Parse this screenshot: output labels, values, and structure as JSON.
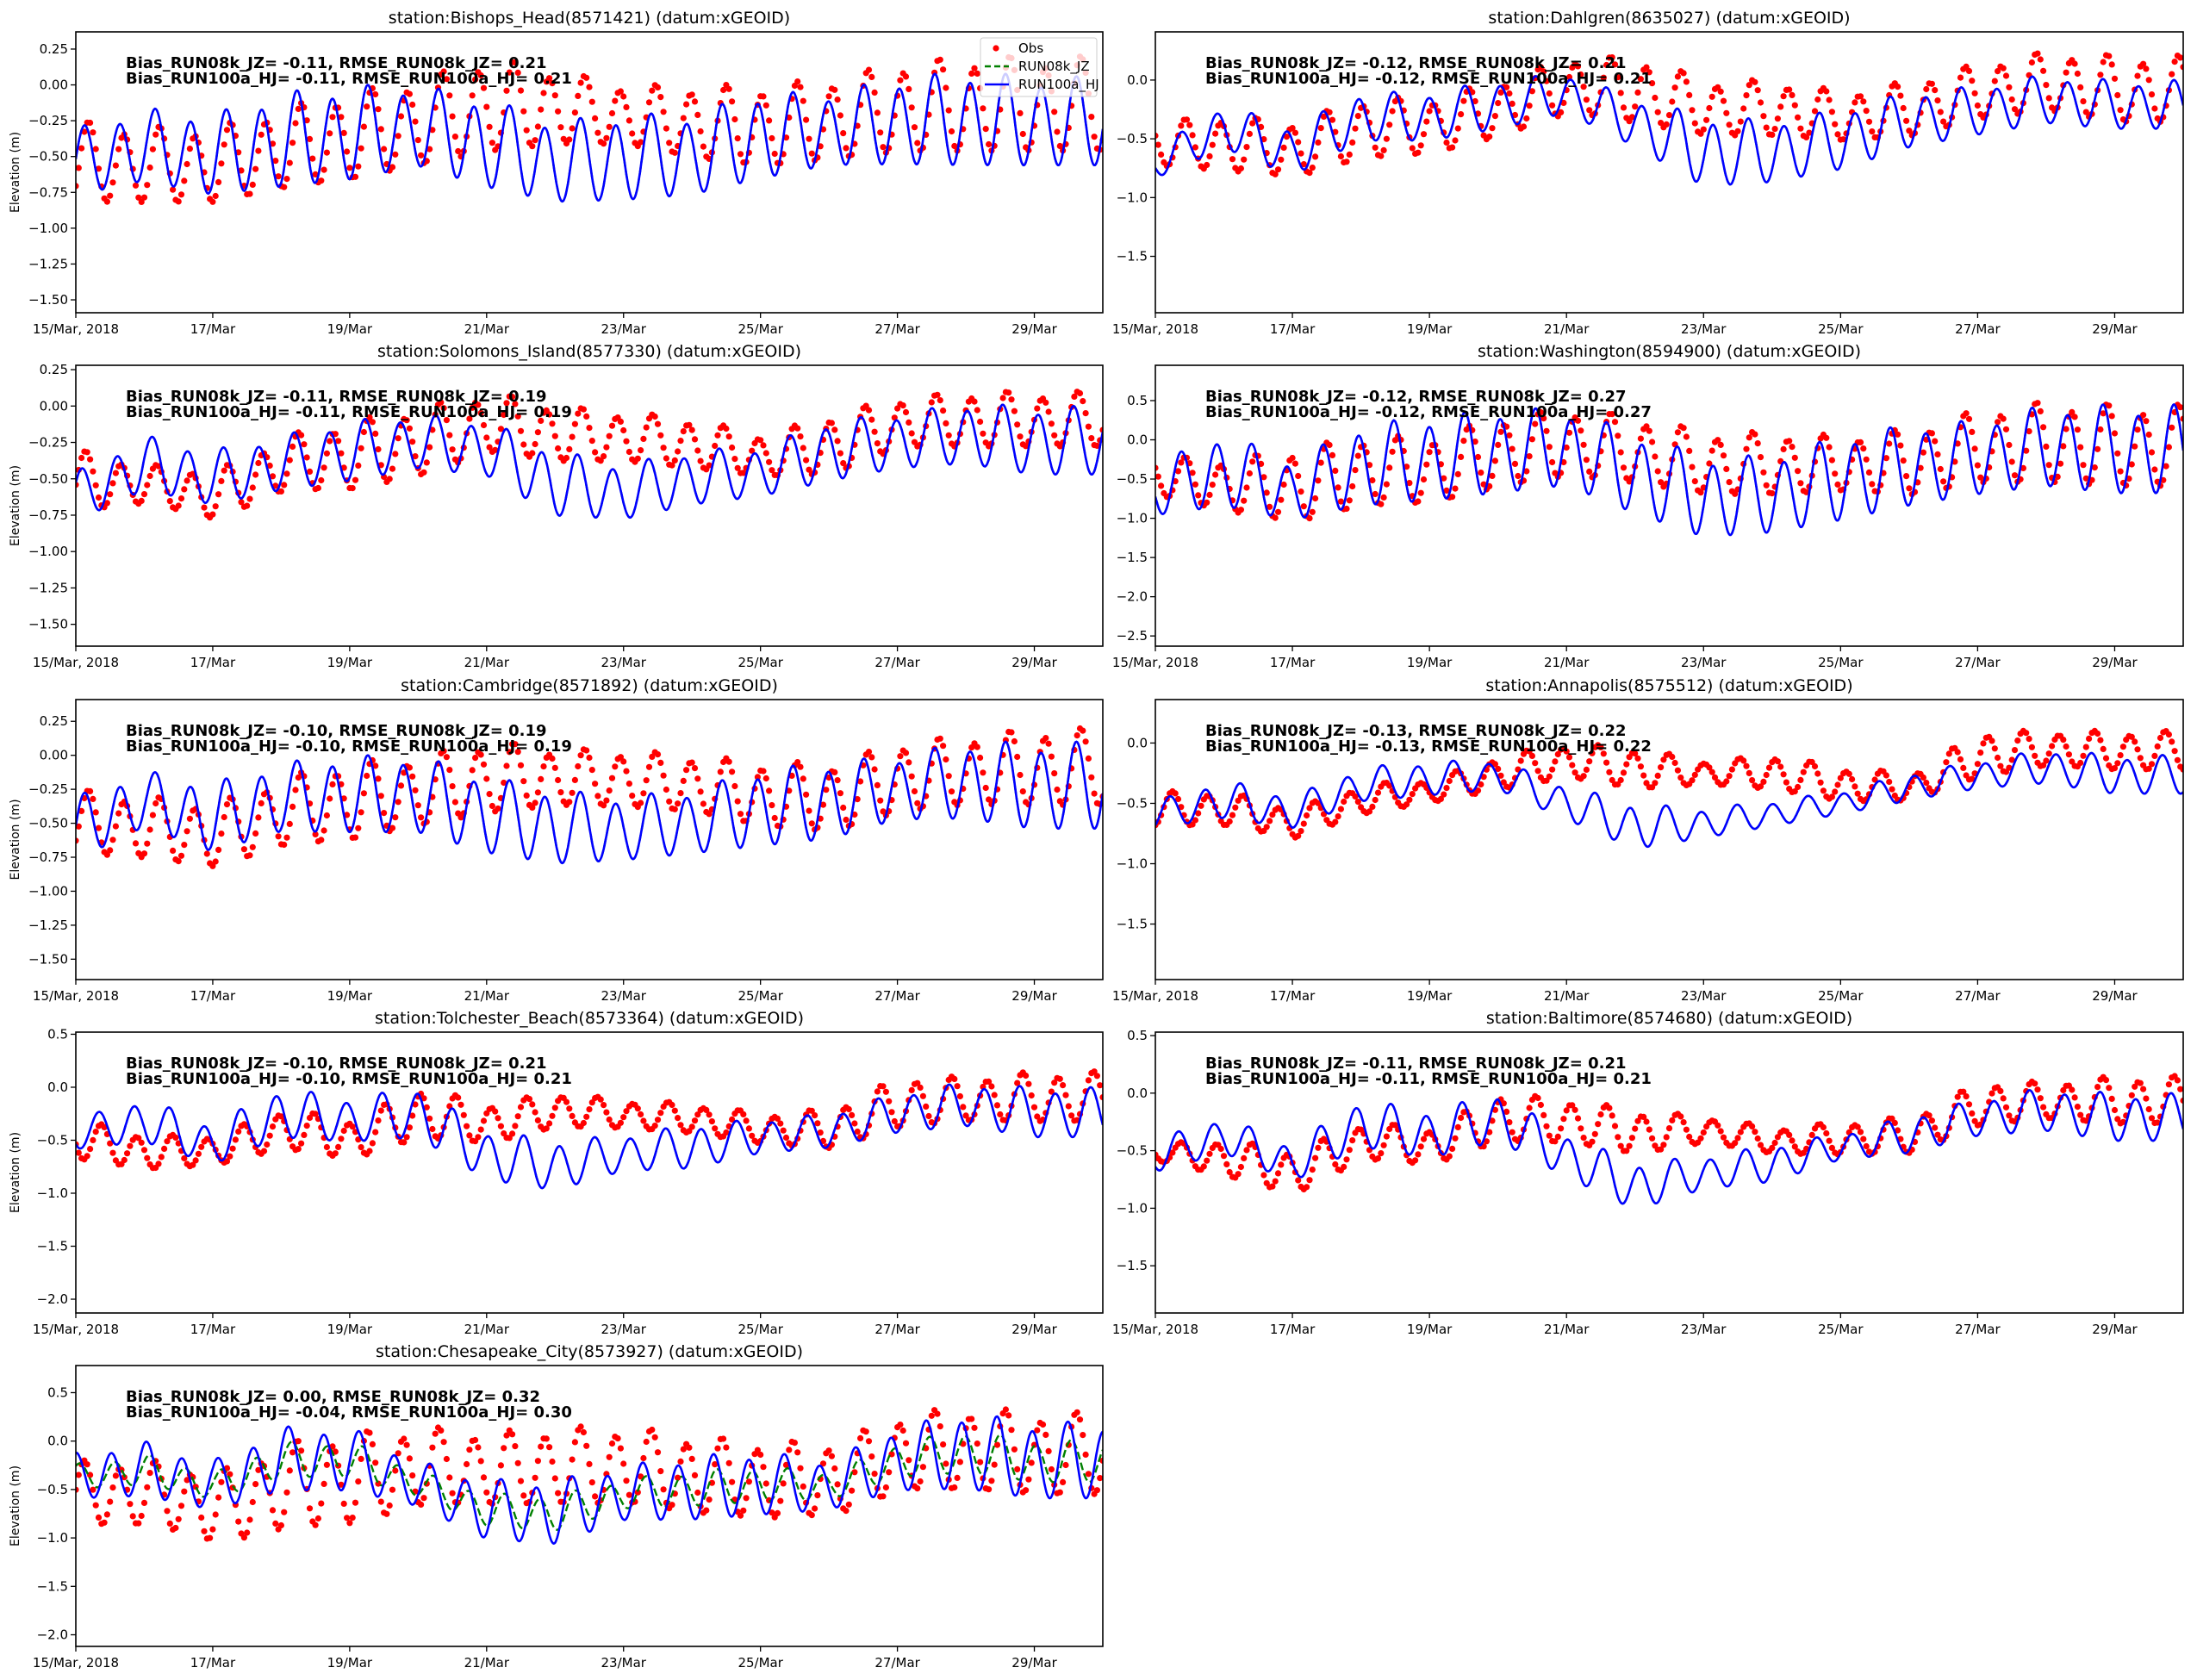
{
  "colors": {
    "obs": "#ff0000",
    "run08k_jz": "#008000",
    "run100a_hj": "#0000ff"
  },
  "legend": {
    "obs": "Obs",
    "run08k_jz": "RUN08k_JZ",
    "run100a_hj": "RUN100a_HJ"
  },
  "ylabel": "Elevation (m)",
  "x_ticks": {
    "days": [
      0,
      2,
      4,
      6,
      8,
      10,
      12,
      14
    ],
    "labels": [
      "15/Mar, 2018",
      "17/Mar",
      "19/Mar",
      "21/Mar",
      "23/Mar",
      "25/Mar",
      "27/Mar",
      "29/Mar"
    ]
  },
  "chart_data": [
    {
      "type": "line",
      "title": "station:Bishops_Head(8571421) (datum:xGEOID)",
      "ylim": [
        -1.59,
        0.37
      ],
      "xlim_days": [
        0,
        15
      ],
      "yticks": [
        0.25,
        0,
        -0.25,
        -0.5,
        -0.75,
        -1,
        -1.25,
        -1.5
      ],
      "ytick_labels": [
        "0.25",
        "0.00",
        "−0.25",
        "−0.50",
        "−0.75",
        "−1.00",
        "−1.25",
        "−1.50"
      ],
      "stat1": "Bias_RUN08k_JZ= -0.11, RMSE_RUN08k_JZ=  0.21",
      "stat2": "Bias_RUN100a_HJ= -0.11, RMSE_RUN100a_HJ=  0.21",
      "legend": true,
      "ylabel": true,
      "model_mean": [
        -0.55,
        -0.43,
        -0.5,
        -0.4,
        -0.35,
        -0.3,
        -0.42,
        -0.55,
        -0.52,
        -0.5,
        -0.37,
        -0.32,
        -0.27,
        -0.25,
        -0.27,
        -0.27
      ],
      "model_amp": [
        0.25,
        0.27,
        0.3,
        0.35,
        0.35,
        0.3,
        0.33,
        0.3,
        0.32,
        0.3,
        0.32,
        0.27,
        0.32,
        0.35,
        0.33,
        0.33
      ],
      "obs_mean": [
        -0.55,
        -0.57,
        -0.57,
        -0.45,
        -0.37,
        -0.27,
        -0.15,
        -0.17,
        -0.22,
        -0.27,
        -0.3,
        -0.25,
        -0.17,
        -0.15,
        -0.15,
        -0.15
      ],
      "obs_amp": [
        0.3,
        0.28,
        0.28,
        0.3,
        0.32,
        0.32,
        0.35,
        0.27,
        0.22,
        0.27,
        0.3,
        0.3,
        0.33,
        0.35,
        0.35,
        0.35
      ],
      "phase_hours": 3,
      "obs_lag_hours": 1.5,
      "jz_amp_ratio": 1,
      "jz_lag_hours": 0
    },
    {
      "type": "line",
      "title": "station:Dahlgren(8635027) (datum:xGEOID)",
      "ylim": [
        -1.98,
        0.41
      ],
      "xlim_days": [
        0,
        15
      ],
      "yticks": [
        0,
        -0.5,
        -1,
        -1.5
      ],
      "ytick_labels": [
        "0.0",
        "−0.5",
        "−1.0",
        "−1.5"
      ],
      "stat1": "Bias_RUN08k_JZ= -0.12, RMSE_RUN08k_JZ=  0.21",
      "stat2": "Bias_RUN100a_HJ= -0.12, RMSE_RUN100a_HJ=  0.21",
      "legend": false,
      "ylabel": false,
      "model_mean": [
        -0.72,
        -0.4,
        -0.62,
        -0.32,
        -0.32,
        -0.22,
        -0.12,
        -0.37,
        -0.62,
        -0.62,
        -0.52,
        -0.35,
        -0.27,
        -0.17,
        -0.22,
        -0.22
      ],
      "model_amp": [
        0.13,
        0.2,
        0.22,
        0.22,
        0.22,
        0.22,
        0.18,
        0.22,
        0.32,
        0.28,
        0.27,
        0.25,
        0.22,
        0.22,
        0.22,
        0.22
      ],
      "obs_mean": [
        -0.55,
        -0.55,
        -0.6,
        -0.42,
        -0.4,
        -0.25,
        -0.05,
        -0.1,
        -0.25,
        -0.25,
        -0.32,
        -0.25,
        -0.1,
        -0.02,
        -0.09,
        -0.09
      ],
      "obs_amp": [
        0.2,
        0.25,
        0.25,
        0.27,
        0.25,
        0.25,
        0.25,
        0.3,
        0.25,
        0.25,
        0.22,
        0.25,
        0.25,
        0.27,
        0.3,
        0.3
      ],
      "phase_hours": 9,
      "obs_lag_hours": 1.5,
      "jz_amp_ratio": 1,
      "jz_lag_hours": 0
    },
    {
      "type": "line",
      "title": "station:Solomons_Island(8577330) (datum:xGEOID)",
      "ylim": [
        -1.65,
        0.28
      ],
      "xlim_days": [
        0,
        15
      ],
      "yticks": [
        0.25,
        0,
        -0.25,
        -0.5,
        -0.75,
        -1,
        -1.25,
        -1.5
      ],
      "ytick_labels": [
        "0.25",
        "0.00",
        "−0.25",
        "−0.50",
        "−0.75",
        "−1.00",
        "−1.25",
        "−1.50"
      ],
      "stat1": "Bias_RUN08k_JZ= -0.11, RMSE_RUN08k_JZ=  0.19",
      "stat2": "Bias_RUN100a_HJ= -0.11, RMSE_RUN100a_HJ=  0.19",
      "legend": false,
      "ylabel": true,
      "model_mean": [
        -0.63,
        -0.4,
        -0.5,
        -0.4,
        -0.32,
        -0.25,
        -0.3,
        -0.54,
        -0.6,
        -0.5,
        -0.46,
        -0.32,
        -0.25,
        -0.2,
        -0.25,
        -0.25
      ],
      "model_amp": [
        0.18,
        0.2,
        0.2,
        0.2,
        0.22,
        0.2,
        0.2,
        0.24,
        0.2,
        0.2,
        0.18,
        0.22,
        0.2,
        0.22,
        0.25,
        0.25
      ],
      "obs_mean": [
        -0.52,
        -0.54,
        -0.62,
        -0.4,
        -0.35,
        -0.25,
        -0.12,
        -0.2,
        -0.22,
        -0.27,
        -0.35,
        -0.27,
        -0.12,
        -0.1,
        -0.1,
        -0.1
      ],
      "obs_amp": [
        0.22,
        0.14,
        0.18,
        0.2,
        0.25,
        0.25,
        0.22,
        0.2,
        0.18,
        0.18,
        0.15,
        0.22,
        0.18,
        0.2,
        0.2,
        0.2
      ],
      "phase_hours": 2,
      "obs_lag_hours": 1.5,
      "jz_amp_ratio": 1,
      "jz_lag_hours": 0
    },
    {
      "type": "line",
      "title": "station:Washington(8594900) (datum:xGEOID)",
      "ylim": [
        -2.63,
        0.95
      ],
      "xlim_days": [
        0,
        15
      ],
      "yticks": [
        0.5,
        0,
        -0.5,
        -1,
        -1.5,
        -2,
        -2.5
      ],
      "ytick_labels": [
        "0.5",
        "0.0",
        "−0.5",
        "−1.0",
        "−1.5",
        "−2.0",
        "−2.5"
      ],
      "stat1": "Bias_RUN08k_JZ= -0.12, RMSE_RUN08k_JZ=  0.27",
      "stat2": "Bias_RUN100a_HJ= -0.12, RMSE_RUN100a_HJ=  0.27",
      "legend": false,
      "ylabel": false,
      "model_mean": [
        -0.65,
        -0.4,
        -0.67,
        -0.35,
        -0.27,
        -0.17,
        -0.12,
        -0.45,
        -0.75,
        -0.72,
        -0.52,
        -0.35,
        -0.25,
        -0.1,
        -0.15,
        -0.15
      ],
      "model_amp": [
        0.35,
        0.5,
        0.4,
        0.55,
        0.57,
        0.57,
        0.52,
        0.55,
        0.55,
        0.52,
        0.57,
        0.55,
        0.5,
        0.55,
        0.6,
        0.6
      ],
      "obs_mean": [
        -0.47,
        -0.6,
        -0.6,
        -0.42,
        -0.4,
        -0.17,
        -0.05,
        -0.15,
        -0.32,
        -0.32,
        -0.32,
        -0.3,
        -0.1,
        -0.05,
        -0.1,
        -0.1
      ],
      "obs_amp": [
        0.27,
        0.35,
        0.5,
        0.47,
        0.45,
        0.47,
        0.45,
        0.45,
        0.42,
        0.42,
        0.37,
        0.45,
        0.5,
        0.55,
        0.55,
        0.55
      ],
      "phase_hours": 9,
      "obs_lag_hours": 1.5,
      "jz_amp_ratio": 1,
      "jz_lag_hours": 0
    },
    {
      "type": "line",
      "title": "station:Cambridge(8571892) (datum:xGEOID)",
      "ylim": [
        -1.65,
        0.41
      ],
      "xlim_days": [
        0,
        15
      ],
      "yticks": [
        0.25,
        0,
        -0.25,
        -0.5,
        -0.75,
        -1,
        -1.25,
        -1.5
      ],
      "ytick_labels": [
        "0.25",
        "0.00",
        "−0.25",
        "−0.50",
        "−0.75",
        "−1.00",
        "−1.25",
        "−1.50"
      ],
      "stat1": "Bias_RUN08k_JZ= -0.10, RMSE_RUN08k_JZ=  0.19",
      "stat2": "Bias_RUN100a_HJ= -0.10, RMSE_RUN100a_HJ=  0.19",
      "legend": false,
      "ylabel": true,
      "model_mean": [
        -0.55,
        -0.33,
        -0.47,
        -0.32,
        -0.3,
        -0.3,
        -0.45,
        -0.54,
        -0.55,
        -0.5,
        -0.4,
        -0.35,
        -0.25,
        -0.2,
        -0.24,
        -0.24
      ],
      "model_amp": [
        0.25,
        0.22,
        0.27,
        0.27,
        0.3,
        0.3,
        0.3,
        0.29,
        0.25,
        0.25,
        0.3,
        0.3,
        0.25,
        0.3,
        0.34,
        0.34
      ],
      "obs_mean": [
        -0.5,
        -0.54,
        -0.6,
        -0.42,
        -0.35,
        -0.27,
        -0.17,
        -0.17,
        -0.18,
        -0.22,
        -0.3,
        -0.32,
        -0.17,
        -0.12,
        -0.1,
        -0.1
      ],
      "obs_amp": [
        0.25,
        0.24,
        0.25,
        0.27,
        0.3,
        0.27,
        0.28,
        0.22,
        0.22,
        0.22,
        0.25,
        0.27,
        0.27,
        0.27,
        0.3,
        0.3
      ],
      "phase_hours": 3,
      "obs_lag_hours": 1.5,
      "jz_amp_ratio": 1,
      "jz_lag_hours": 0
    },
    {
      "type": "line",
      "title": "station:Annapolis(8575512) (datum:xGEOID)",
      "ylim": [
        -1.96,
        0.36
      ],
      "xlim_days": [
        0,
        15
      ],
      "yticks": [
        0,
        -0.5,
        -1,
        -1.5
      ],
      "ytick_labels": [
        "0.0",
        "−0.5",
        "−1.0",
        "−1.5"
      ],
      "stat1": "Bias_RUN08k_JZ= -0.13, RMSE_RUN08k_JZ=  0.22",
      "stat2": "Bias_RUN100a_HJ= -0.13, RMSE_RUN100a_HJ=  0.22",
      "legend": false,
      "ylabel": false,
      "model_mean": [
        -0.6,
        -0.47,
        -0.58,
        -0.35,
        -0.3,
        -0.27,
        -0.5,
        -0.7,
        -0.67,
        -0.59,
        -0.5,
        -0.37,
        -0.27,
        -0.2,
        -0.27,
        -0.27
      ],
      "model_amp": [
        0.12,
        0.17,
        0.14,
        0.15,
        0.15,
        0.13,
        0.15,
        0.2,
        0.13,
        0.11,
        0.1,
        0.12,
        0.12,
        0.15,
        0.17,
        0.17
      ],
      "obs_mean": [
        -0.55,
        -0.55,
        -0.67,
        -0.47,
        -0.4,
        -0.25,
        -0.15,
        -0.22,
        -0.25,
        -0.25,
        -0.35,
        -0.37,
        -0.1,
        -0.05,
        -0.07,
        -0.07
      ],
      "obs_amp": [
        0.15,
        0.15,
        0.13,
        0.13,
        0.1,
        0.15,
        0.15,
        0.18,
        0.1,
        0.15,
        0.15,
        0.12,
        0.2,
        0.15,
        0.17,
        0.17
      ],
      "phase_hours": 5,
      "obs_lag_hours": 1,
      "jz_amp_ratio": 1,
      "jz_lag_hours": 0
    },
    {
      "type": "line",
      "title": "station:Tolchester_Beach(8573364) (datum:xGEOID)",
      "ylim": [
        -2.13,
        0.52
      ],
      "xlim_days": [
        0,
        15
      ],
      "yticks": [
        0.5,
        0,
        -0.5,
        -1,
        -1.5,
        -2
      ],
      "ytick_labels": [
        "0.5",
        "0.0",
        "−0.5",
        "−1.0",
        "−1.5",
        "−2.0"
      ],
      "stat1": "Bias_RUN08k_JZ= -0.10, RMSE_RUN08k_JZ=  0.21",
      "stat2": "Bias_RUN100a_HJ= -0.10, RMSE_RUN100a_HJ=  0.21",
      "legend": false,
      "ylabel": true,
      "model_mean": [
        -0.45,
        -0.32,
        -0.55,
        -0.25,
        -0.32,
        -0.25,
        -0.65,
        -0.75,
        -0.63,
        -0.57,
        -0.47,
        -0.42,
        -0.25,
        -0.17,
        -0.25,
        -0.25
      ],
      "model_amp": [
        0.15,
        0.22,
        0.2,
        0.25,
        0.22,
        0.25,
        0.25,
        0.25,
        0.18,
        0.22,
        0.17,
        0.17,
        0.2,
        0.22,
        0.25,
        0.25
      ],
      "obs_mean": [
        -0.5,
        -0.62,
        -0.6,
        -0.4,
        -0.5,
        -0.25,
        -0.35,
        -0.22,
        -0.26,
        -0.3,
        -0.4,
        -0.4,
        -0.15,
        -0.12,
        -0.1,
        -0.1
      ],
      "obs_amp": [
        0.2,
        0.17,
        0.15,
        0.2,
        0.2,
        0.25,
        0.2,
        0.17,
        0.14,
        0.15,
        0.15,
        0.2,
        0.25,
        0.22,
        0.25,
        0.25
      ],
      "phase_hours": 8,
      "obs_lag_hours": 1,
      "jz_amp_ratio": 1,
      "jz_lag_hours": 0
    },
    {
      "type": "line",
      "title": "station:Baltimore(8574680) (datum:xGEOID)",
      "ylim": [
        -1.91,
        0.53
      ],
      "xlim_days": [
        0,
        15
      ],
      "yticks": [
        0.5,
        0,
        -0.5,
        -1,
        -1.5
      ],
      "ytick_labels": [
        "0.5",
        "0.0",
        "−0.5",
        "−1.0",
        "−1.5"
      ],
      "stat1": "Bias_RUN08k_JZ= -0.11, RMSE_RUN08k_JZ=  0.21",
      "stat2": "Bias_RUN100a_HJ= -0.11, RMSE_RUN100a_HJ=  0.21",
      "legend": false,
      "ylabel": false,
      "model_mean": [
        -0.55,
        -0.37,
        -0.62,
        -0.27,
        -0.37,
        -0.22,
        -0.55,
        -0.82,
        -0.7,
        -0.62,
        -0.47,
        -0.37,
        -0.22,
        -0.15,
        -0.22,
        -0.22
      ],
      "model_amp": [
        0.15,
        0.17,
        0.17,
        0.22,
        0.22,
        0.22,
        0.2,
        0.22,
        0.15,
        0.17,
        0.12,
        0.17,
        0.17,
        0.2,
        0.22,
        0.22
      ],
      "obs_mean": [
        -0.52,
        -0.57,
        -0.7,
        -0.42,
        -0.47,
        -0.22,
        -0.25,
        -0.35,
        -0.32,
        -0.42,
        -0.4,
        -0.37,
        -0.1,
        -0.07,
        -0.07,
        -0.07
      ],
      "obs_amp": [
        0.08,
        0.17,
        0.2,
        0.17,
        0.17,
        0.22,
        0.2,
        0.2,
        0.12,
        0.12,
        0.15,
        0.17,
        0.2,
        0.17,
        0.22,
        0.22
      ],
      "phase_hours": 8,
      "obs_lag_hours": 1,
      "jz_amp_ratio": 1,
      "jz_lag_hours": 0
    },
    {
      "type": "line",
      "title": "station:Chesapeake_City(8573927) (datum:xGEOID)",
      "ylim": [
        -2.12,
        0.78
      ],
      "xlim_days": [
        0,
        15
      ],
      "yticks": [
        0.5,
        0,
        -0.5,
        -1,
        -1.5,
        -2
      ],
      "ytick_labels": [
        "0.5",
        "0.0",
        "−0.5",
        "−1.0",
        "−1.5",
        "−2.0"
      ],
      "stat1": "Bias_RUN08k_JZ=  0.00, RMSE_RUN08k_JZ=  0.32",
      "stat2": "Bias_RUN100a_HJ= -0.04, RMSE_RUN100a_HJ=  0.30",
      "legend": false,
      "ylabel": true,
      "model_mean": [
        -0.37,
        -0.3,
        -0.47,
        -0.2,
        -0.2,
        -0.45,
        -0.72,
        -0.75,
        -0.55,
        -0.5,
        -0.45,
        -0.47,
        -0.2,
        -0.12,
        -0.22,
        -0.22
      ],
      "model_amp": [
        0.25,
        0.3,
        0.27,
        0.35,
        0.35,
        0.25,
        0.33,
        0.35,
        0.3,
        0.35,
        0.35,
        0.27,
        0.35,
        0.42,
        0.42,
        0.42
      ],
      "obs_mean": [
        -0.55,
        -0.55,
        -0.7,
        -0.47,
        -0.4,
        -0.27,
        -0.3,
        -0.27,
        -0.27,
        -0.37,
        -0.42,
        -0.4,
        -0.12,
        -0.1,
        -0.15,
        -0.15
      ],
      "obs_amp": [
        0.35,
        0.35,
        0.4,
        0.47,
        0.5,
        0.42,
        0.4,
        0.42,
        0.42,
        0.42,
        0.42,
        0.4,
        0.42,
        0.45,
        0.45,
        0.45
      ],
      "phase_hours": 0,
      "obs_lag_hours": 3,
      "jz_amp_ratio": 0.55,
      "jz_lag_hours": 1.2
    }
  ]
}
